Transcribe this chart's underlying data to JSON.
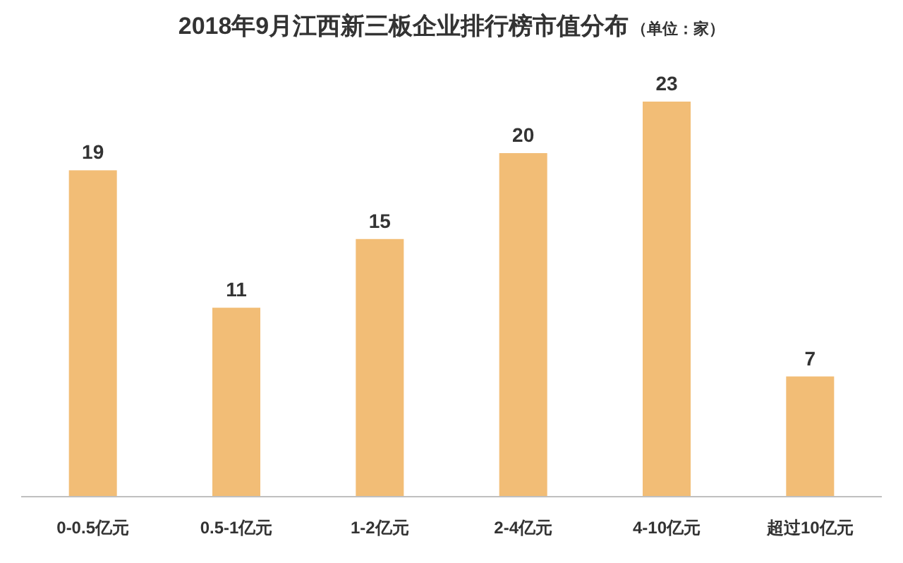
{
  "chart_data": {
    "type": "bar",
    "title": "2018年9月江西新三板企业排行榜市值分布",
    "subtitle": "（单位：家）",
    "categories": [
      "0-0.5亿元",
      "0.5-1亿元",
      "1-2亿元",
      "2-4亿元",
      "4-10亿元",
      "超过10亿元"
    ],
    "values": [
      19,
      11,
      15,
      20,
      23,
      7
    ],
    "color": "#f2bd76",
    "data_labels": true
  }
}
